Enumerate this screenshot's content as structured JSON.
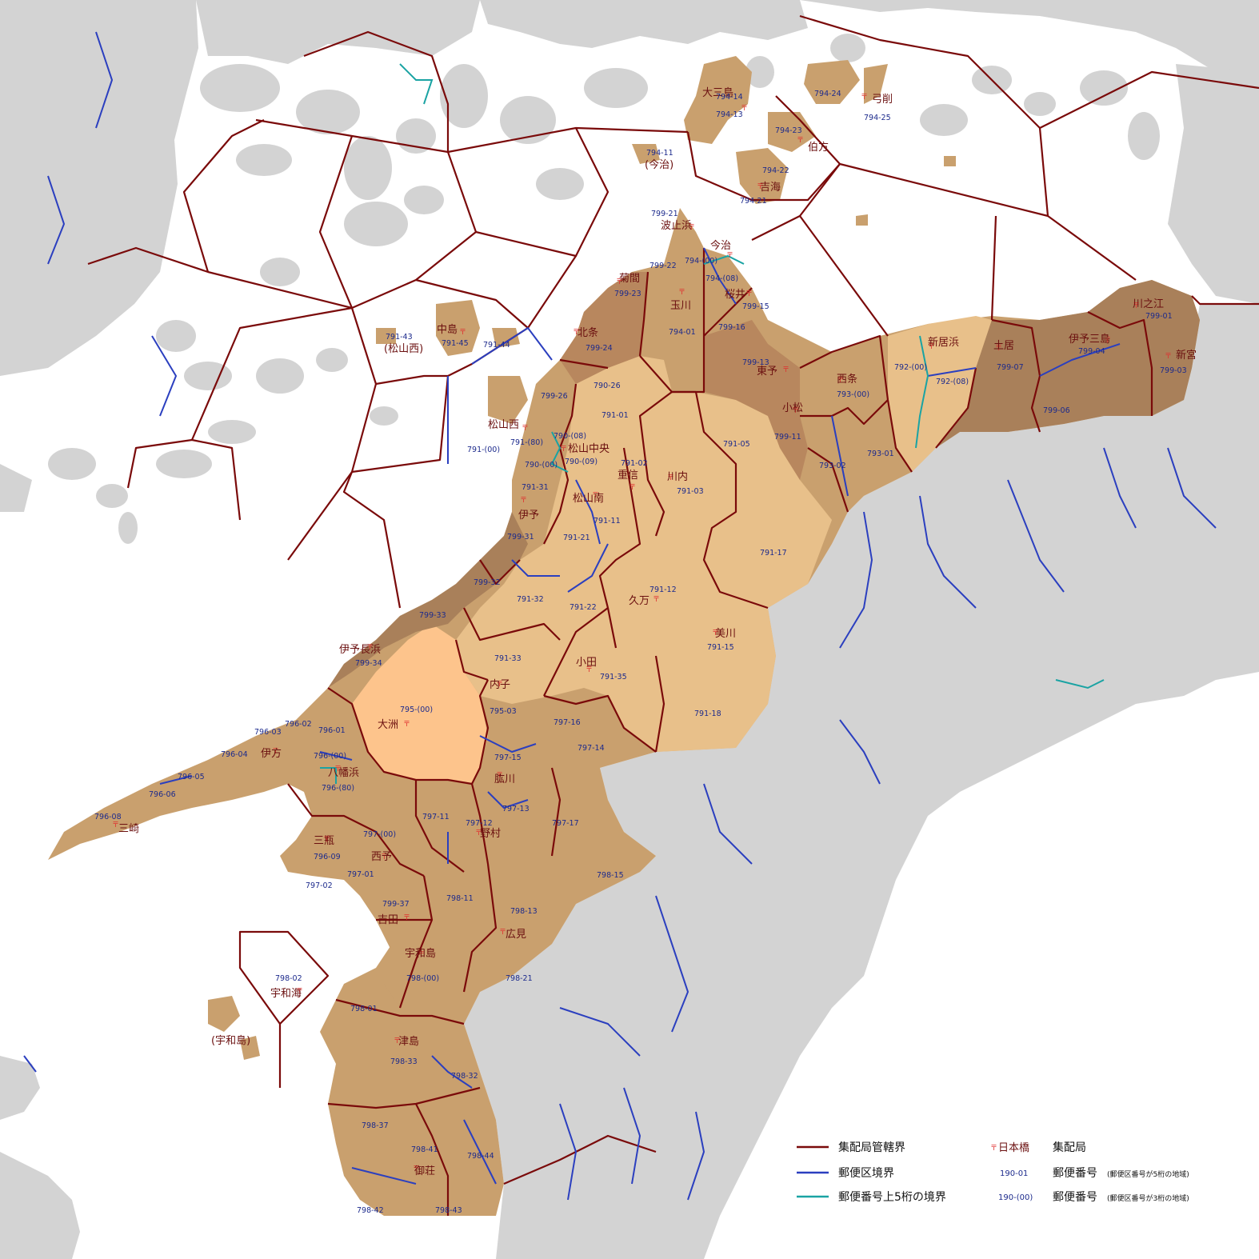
{
  "colors": {
    "sea": "#ffffff",
    "land_other": "#d3d3d3",
    "collection_boundary": "#7a0a0a",
    "postal_district_boundary": "#2b3fbf",
    "upper5_boundary": "#1aa3a3",
    "area_light": "#e8c08a",
    "area_pale": "#fdc48c",
    "area_mid": "#c9a06e",
    "area_dark": "#b8875e",
    "area_brown": "#a9805a"
  },
  "legend": {
    "collection_boundary": "集配局管轄界",
    "postal_district_boundary": "郵便区境界",
    "upper5_boundary": "郵便番号上5桁の境界",
    "office_sample": "日本橋",
    "office_label": "集配局",
    "code5_sample": "190-01",
    "code5_label": "郵便番号",
    "code5_note": "(郵便区番号が5桁の地域)",
    "code3_sample": "190-(00)",
    "code3_label": "郵便番号",
    "code3_note": "(郵便区番号が3桁の地域)"
  },
  "office_names": [
    "大三島",
    "弓削",
    "伯方",
    "吉海",
    "(今治)",
    "波止浜",
    "今治",
    "菊間",
    "玉川",
    "桜井",
    "北条",
    "東予",
    "西条",
    "新居浜",
    "土居",
    "伊予三島",
    "川之江",
    "新宮",
    "中島",
    "(松山西)",
    "松山西",
    "松山中央",
    "重信",
    "川内",
    "松山南",
    "伊予",
    "小松",
    "久万",
    "美川",
    "小田",
    "内子",
    "大洲",
    "伊予長浜",
    "伊方",
    "八幡浜",
    "三崎",
    "三瓶",
    "西予",
    "野村",
    "肱川",
    "吉田",
    "宇和島",
    "宇和海",
    "(宇和島)",
    "広見",
    "津島",
    "御荘"
  ],
  "postal_codes": [
    "794-14",
    "794-13",
    "794-24",
    "794-25",
    "794-23",
    "794-22",
    "794-21",
    "794-11",
    "799-21",
    "794-(00)",
    "794-(08)",
    "799-22",
    "799-23",
    "794-01",
    "799-15",
    "799-16",
    "799-24",
    "799-13",
    "790-26",
    "792-(00)",
    "793-(00)",
    "792-(08)",
    "799-07",
    "799-04",
    "799-01",
    "799-03",
    "799-06",
    "791-43",
    "791-45",
    "791-44",
    "799-26",
    "791-01",
    "790-(08)",
    "791-(80)",
    "791-(00)",
    "790-(00)",
    "790-(09)",
    "791-02",
    "791-05",
    "799-11",
    "793-02",
    "793-01",
    "791-31",
    "791-03",
    "791-11",
    "799-31",
    "791-21",
    "791-17",
    "799-32",
    "791-32",
    "791-22",
    "791-12",
    "799-33",
    "799-34",
    "791-33",
    "791-15",
    "791-35",
    "795-(00)",
    "795-03",
    "791-18",
    "796-03",
    "796-02",
    "796-01",
    "796-04",
    "797-16",
    "797-14",
    "796-(00)",
    "797-15",
    "796-05",
    "796-(80)",
    "796-06",
    "797-11",
    "797-13",
    "797-17",
    "796-08",
    "797-12",
    "797-(00)",
    "796-09",
    "797-01",
    "797-02",
    "798-15",
    "799-37",
    "798-11",
    "798-13",
    "798-02",
    "798-(00)",
    "798-21",
    "798-01",
    "798-33",
    "798-32",
    "798-37",
    "798-41",
    "798-44",
    "798-42",
    "798-43"
  ]
}
